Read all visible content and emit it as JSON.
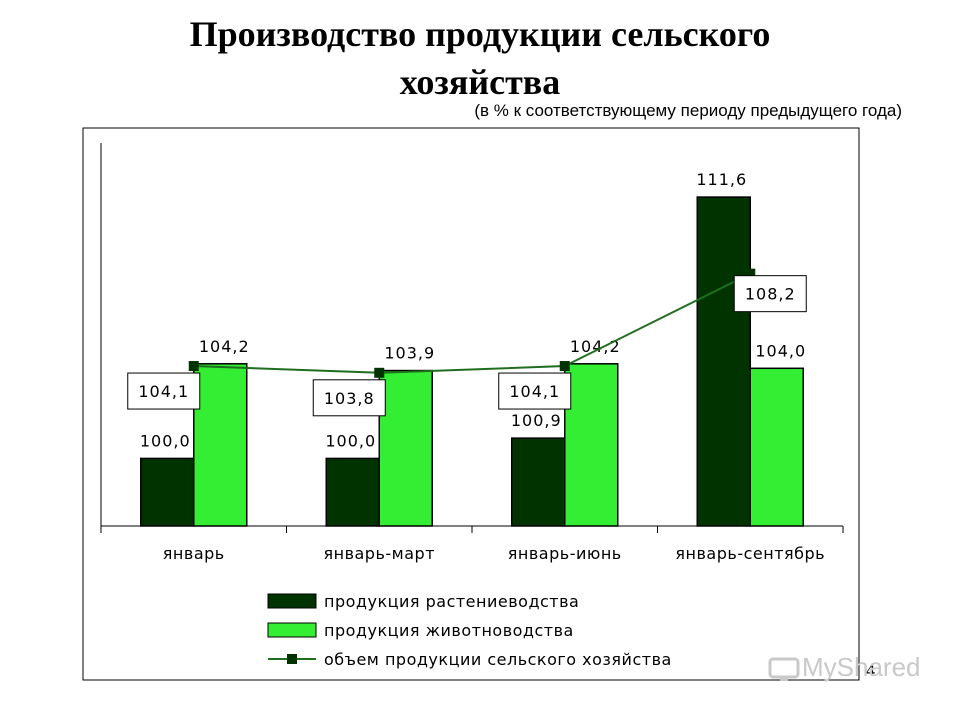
{
  "slide": {
    "title_line1": "Производство продукции сельского",
    "title_line2": "хозяйства",
    "subtitle": "(в % к соответствующему периоду предыдущего года)",
    "page_number": "4",
    "watermark": "MyShared"
  },
  "chart_data": {
    "type": "bar",
    "categories": [
      "январь",
      "январь-март",
      "январь-июнь",
      "январь-сентябрь"
    ],
    "series": [
      {
        "name": "продукция растениеводства",
        "kind": "bar",
        "color": "#003300",
        "values": [
          100.0,
          100.0,
          100.9,
          111.6
        ],
        "labels": [
          "100,0",
          "100,0",
          "100,9",
          "111,6"
        ]
      },
      {
        "name": "продукция животноводства",
        "kind": "bar",
        "color": "#33ee33",
        "values": [
          104.2,
          103.9,
          104.2,
          104.0
        ],
        "labels": [
          "104,2",
          "103,9",
          "104,2",
          "104,0"
        ]
      },
      {
        "name": "объем продукции сельского хозяйства",
        "kind": "line",
        "color": "#1f6e1f",
        "marker_color": "#003300",
        "values": [
          104.1,
          103.8,
          104.1,
          108.2
        ],
        "labels": [
          "104,1",
          "103,8",
          "104,1",
          "108,2"
        ]
      }
    ],
    "y_axis": {
      "min": 97.0,
      "max": 114.0,
      "visible_ticks": false
    },
    "legend_position": "bottom",
    "grid": false
  }
}
